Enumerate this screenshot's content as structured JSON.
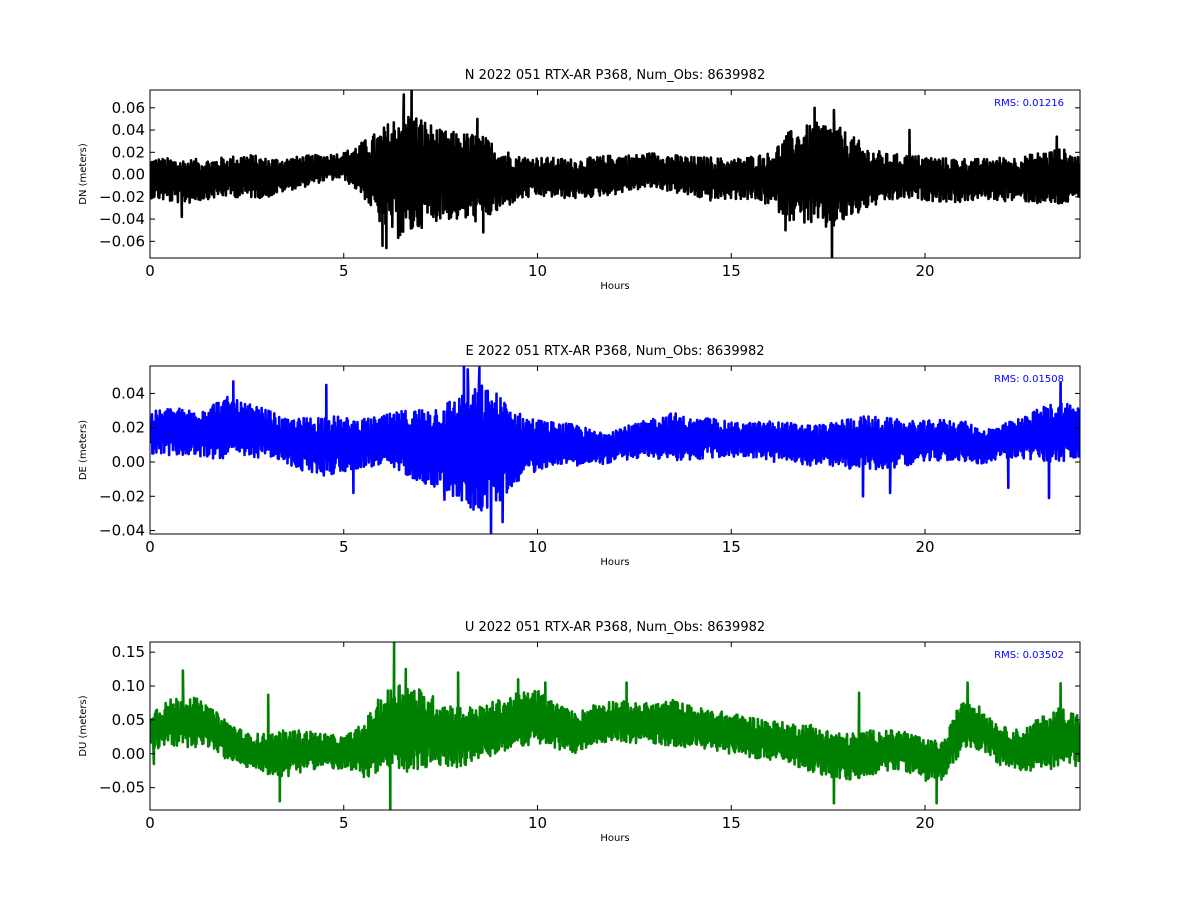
{
  "chart_data": [
    {
      "type": "line",
      "title": "N 2022 051 RTX-AR  P368, Num_Obs: 8639982",
      "xlabel": "Hours",
      "ylabel": "DN (meters)",
      "xlim": [
        0,
        24
      ],
      "ylim": [
        -0.075,
        0.076
      ],
      "xticks": [
        0,
        5,
        10,
        15,
        20
      ],
      "xtick_labels": [
        "0",
        "5",
        "10",
        "15",
        "20"
      ],
      "yticks": [
        0.06,
        0.04,
        0.02,
        0.0,
        -0.02,
        -0.04,
        -0.06
      ],
      "ytick_labels": [
        "0.06",
        "0.04",
        "0.02",
        "0.00",
        "−0.02",
        "−0.04",
        "−0.06"
      ],
      "annotation": "RMS:  0.01216",
      "annotation_color": "#0000ff",
      "grid": false,
      "series": [
        {
          "color": "#000000",
          "envelope": {
            "x": [
              0,
              0.5,
              1,
              1.5,
              2,
              2.5,
              3,
              3.5,
              4,
              4.5,
              5,
              5.5,
              6,
              6.5,
              7,
              7.5,
              8,
              8.5,
              9,
              9.5,
              10,
              10.5,
              11,
              11.5,
              12,
              12.5,
              13,
              13.5,
              14,
              14.5,
              15,
              15.5,
              16,
              16.5,
              17,
              17.5,
              18,
              18.5,
              19,
              19.5,
              20,
              20.5,
              21,
              21.5,
              22,
              22.5,
              23,
              23.5,
              24
            ],
            "center": [
              -0.003,
              -0.005,
              -0.006,
              -0.004,
              -0.002,
              -0.001,
              -0.003,
              0.0,
              0.003,
              0.006,
              0.008,
              0.005,
              -0.003,
              0.0,
              0.002,
              0.0,
              -0.002,
              -0.003,
              -0.004,
              -0.003,
              -0.002,
              -0.003,
              -0.004,
              -0.002,
              0.0,
              0.002,
              0.004,
              0.001,
              -0.002,
              -0.004,
              -0.004,
              -0.003,
              -0.004,
              -0.001,
              0.0,
              -0.001,
              -0.002,
              -0.003,
              -0.003,
              -0.002,
              -0.003,
              -0.005,
              -0.005,
              -0.004,
              -0.004,
              -0.004,
              -0.003,
              -0.002,
              -0.003
            ],
            "amplitude": [
              0.018,
              0.02,
              0.02,
              0.018,
              0.018,
              0.02,
              0.018,
              0.015,
              0.014,
              0.012,
              0.012,
              0.025,
              0.045,
              0.06,
              0.05,
              0.04,
              0.04,
              0.04,
              0.03,
              0.02,
              0.018,
              0.018,
              0.018,
              0.018,
              0.018,
              0.016,
              0.016,
              0.017,
              0.018,
              0.02,
              0.018,
              0.02,
              0.024,
              0.04,
              0.045,
              0.05,
              0.04,
              0.028,
              0.022,
              0.02,
              0.02,
              0.02,
              0.02,
              0.018,
              0.02,
              0.02,
              0.024,
              0.026,
              0.02
            ]
          },
          "extremes": [
            {
              "x": 0.82,
              "y": -0.038
            },
            {
              "x": 6.0,
              "y": -0.064
            },
            {
              "x": 6.1,
              "y": -0.066
            },
            {
              "x": 6.55,
              "y": 0.072
            },
            {
              "x": 6.75,
              "y": 0.076
            },
            {
              "x": 8.45,
              "y": 0.05
            },
            {
              "x": 8.6,
              "y": -0.052
            },
            {
              "x": 16.4,
              "y": -0.05
            },
            {
              "x": 17.15,
              "y": 0.06
            },
            {
              "x": 17.6,
              "y": -0.074
            },
            {
              "x": 17.65,
              "y": 0.058
            },
            {
              "x": 19.6,
              "y": 0.04
            },
            {
              "x": 23.4,
              "y": 0.034
            }
          ]
        }
      ]
    },
    {
      "type": "line",
      "title": "E 2022 051 RTX-AR  P368, Num_Obs: 8639982",
      "xlabel": "Hours",
      "ylabel": "DE (meters)",
      "xlim": [
        0,
        24
      ],
      "ylim": [
        -0.042,
        0.056
      ],
      "xticks": [
        0,
        5,
        10,
        15,
        20
      ],
      "xtick_labels": [
        "0",
        "5",
        "10",
        "15",
        "20"
      ],
      "yticks": [
        0.04,
        0.02,
        0.0,
        -0.02,
        -0.04
      ],
      "ytick_labels": [
        "0.04",
        "0.02",
        "0.00",
        "−0.02",
        "−0.04"
      ],
      "annotation": "RMS:  0.01508",
      "annotation_color": "#0000ff",
      "grid": false,
      "series": [
        {
          "color": "#0000ff",
          "envelope": {
            "x": [
              0,
              0.5,
              1,
              1.5,
              2,
              2.5,
              3,
              3.5,
              4,
              4.5,
              5,
              5.5,
              6,
              6.5,
              7,
              7.5,
              8,
              8.5,
              9,
              9.5,
              10,
              10.5,
              11,
              11.5,
              12,
              12.5,
              13,
              13.5,
              14,
              14.5,
              15,
              15.5,
              16,
              16.5,
              17,
              17.5,
              18,
              18.5,
              19,
              19.5,
              20,
              20.5,
              21,
              21.5,
              22,
              22.5,
              23,
              23.5,
              24
            ],
            "center": [
              0.017,
              0.018,
              0.017,
              0.018,
              0.02,
              0.018,
              0.017,
              0.012,
              0.01,
              0.01,
              0.01,
              0.011,
              0.012,
              0.012,
              0.01,
              0.009,
              0.008,
              0.008,
              0.008,
              0.009,
              0.01,
              0.011,
              0.01,
              0.008,
              0.01,
              0.012,
              0.014,
              0.015,
              0.013,
              0.014,
              0.013,
              0.013,
              0.012,
              0.011,
              0.01,
              0.01,
              0.011,
              0.011,
              0.011,
              0.011,
              0.012,
              0.013,
              0.012,
              0.009,
              0.012,
              0.014,
              0.016,
              0.018,
              0.017
            ],
            "amplitude": [
              0.012,
              0.014,
              0.014,
              0.016,
              0.018,
              0.016,
              0.014,
              0.013,
              0.016,
              0.018,
              0.016,
              0.014,
              0.015,
              0.018,
              0.022,
              0.025,
              0.032,
              0.038,
              0.032,
              0.02,
              0.015,
              0.012,
              0.012,
              0.01,
              0.01,
              0.01,
              0.012,
              0.014,
              0.012,
              0.012,
              0.01,
              0.01,
              0.012,
              0.012,
              0.012,
              0.012,
              0.015,
              0.016,
              0.015,
              0.013,
              0.012,
              0.012,
              0.012,
              0.01,
              0.01,
              0.012,
              0.016,
              0.018,
              0.016
            ]
          },
          "extremes": [
            {
              "x": 2.15,
              "y": 0.047
            },
            {
              "x": 4.55,
              "y": 0.045
            },
            {
              "x": 5.25,
              "y": -0.018
            },
            {
              "x": 7.6,
              "y": -0.022
            },
            {
              "x": 8.1,
              "y": 0.056
            },
            {
              "x": 8.2,
              "y": 0.054
            },
            {
              "x": 8.5,
              "y": 0.055
            },
            {
              "x": 8.8,
              "y": -0.042
            },
            {
              "x": 9.1,
              "y": -0.035
            },
            {
              "x": 18.4,
              "y": -0.02
            },
            {
              "x": 19.1,
              "y": -0.018
            },
            {
              "x": 22.15,
              "y": -0.015
            },
            {
              "x": 23.2,
              "y": -0.021
            },
            {
              "x": 23.5,
              "y": 0.046
            }
          ]
        }
      ]
    },
    {
      "type": "line",
      "title": "U 2022 051 RTX-AR  P368, Num_Obs: 8639982",
      "xlabel": "Hours",
      "ylabel": "DU (meters)",
      "xlim": [
        0,
        24
      ],
      "ylim": [
        -0.083,
        0.165
      ],
      "xticks": [
        0,
        5,
        10,
        15,
        20
      ],
      "xtick_labels": [
        "0",
        "5",
        "10",
        "15",
        "20"
      ],
      "yticks": [
        0.15,
        0.1,
        0.05,
        0.0,
        -0.05
      ],
      "ytick_labels": [
        "0.15",
        "0.10",
        "0.05",
        "0.00",
        "−0.05"
      ],
      "annotation": "RMS:  0.03502",
      "annotation_color": "#0000ff",
      "grid": false,
      "series": [
        {
          "color": "#008000",
          "envelope": {
            "x": [
              0,
              0.5,
              1,
              1.5,
              2,
              2.5,
              3,
              3.5,
              4,
              4.5,
              5,
              5.5,
              6,
              6.5,
              7,
              7.5,
              8,
              8.5,
              9,
              9.5,
              10,
              10.5,
              11,
              11.5,
              12,
              12.5,
              13,
              13.5,
              14,
              14.5,
              15,
              15.5,
              16,
              16.5,
              17,
              17.5,
              18,
              18.5,
              19,
              19.5,
              20,
              20.5,
              21,
              21.5,
              22,
              22.5,
              23,
              23.5,
              24
            ],
            "center": [
              0.035,
              0.045,
              0.05,
              0.04,
              0.02,
              0.005,
              0.0,
              0.0,
              0.005,
              0.005,
              0.0,
              0.005,
              0.03,
              0.04,
              0.035,
              0.03,
              0.025,
              0.03,
              0.04,
              0.05,
              0.055,
              0.04,
              0.03,
              0.045,
              0.05,
              0.045,
              0.045,
              0.045,
              0.04,
              0.035,
              0.03,
              0.025,
              0.02,
              0.015,
              0.01,
              0.0,
              -0.005,
              0.0,
              0.005,
              0.005,
              -0.01,
              -0.01,
              0.05,
              0.035,
              0.01,
              0.005,
              0.015,
              0.025,
              0.02
            ],
            "amplitude": [
              0.03,
              0.035,
              0.04,
              0.03,
              0.03,
              0.025,
              0.03,
              0.035,
              0.03,
              0.025,
              0.025,
              0.04,
              0.06,
              0.07,
              0.06,
              0.05,
              0.045,
              0.04,
              0.04,
              0.04,
              0.04,
              0.035,
              0.03,
              0.03,
              0.03,
              0.03,
              0.03,
              0.035,
              0.03,
              0.03,
              0.03,
              0.03,
              0.03,
              0.03,
              0.035,
              0.035,
              0.035,
              0.035,
              0.03,
              0.03,
              0.03,
              0.03,
              0.04,
              0.03,
              0.03,
              0.03,
              0.04,
              0.045,
              0.04
            ]
          },
          "extremes": [
            {
              "x": 0.85,
              "y": 0.123
            },
            {
              "x": 0.1,
              "y": -0.015
            },
            {
              "x": 3.05,
              "y": 0.087
            },
            {
              "x": 3.35,
              "y": -0.07
            },
            {
              "x": 6.2,
              "y": -0.083
            },
            {
              "x": 6.3,
              "y": 0.165
            },
            {
              "x": 6.6,
              "y": 0.125
            },
            {
              "x": 7.95,
              "y": 0.12
            },
            {
              "x": 9.5,
              "y": 0.11
            },
            {
              "x": 10.2,
              "y": 0.105
            },
            {
              "x": 12.3,
              "y": 0.105
            },
            {
              "x": 17.65,
              "y": -0.073
            },
            {
              "x": 18.3,
              "y": 0.09
            },
            {
              "x": 20.3,
              "y": -0.073
            },
            {
              "x": 21.1,
              "y": 0.105
            },
            {
              "x": 23.5,
              "y": 0.104
            }
          ]
        }
      ]
    }
  ]
}
